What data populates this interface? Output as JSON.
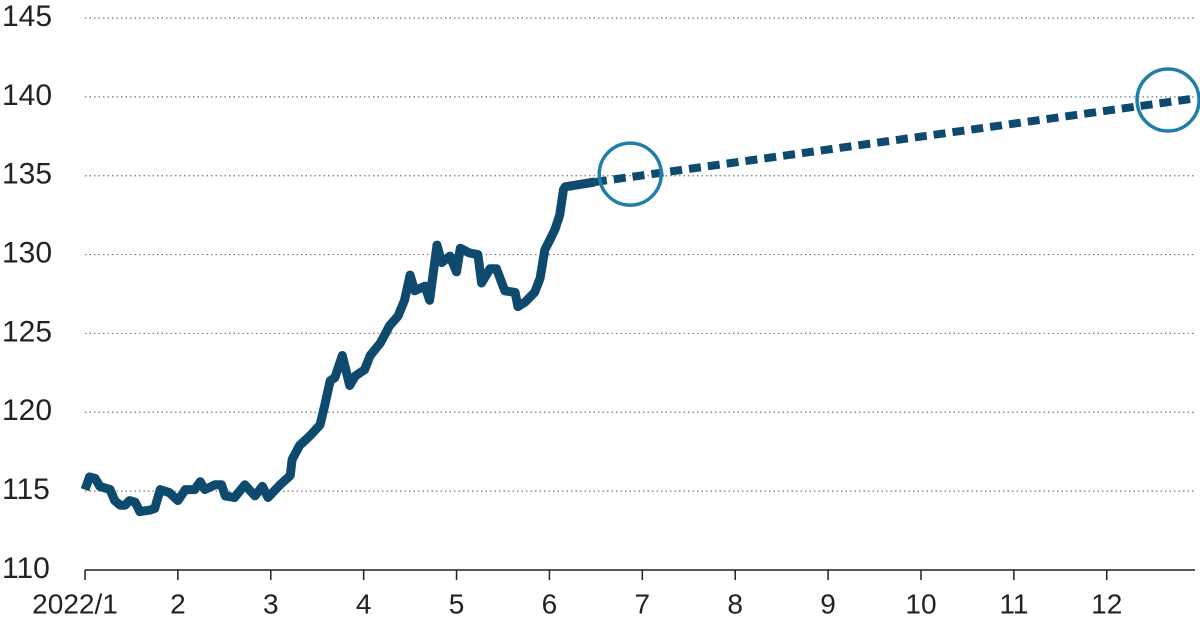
{
  "chart_data": {
    "type": "line",
    "xlim": [
      1,
      12.95
    ],
    "xticks": [
      {
        "value": 1,
        "label": "2022/1"
      },
      2,
      3,
      4,
      5,
      6,
      7,
      8,
      9,
      10,
      11,
      12
    ],
    "ylim": [
      110,
      145
    ],
    "yticks": [
      110,
      115,
      120,
      125,
      130,
      135,
      140,
      145
    ],
    "grid": true,
    "series": [
      {
        "color": "#0d4a6e",
        "style": "solid",
        "x": [
          1.0,
          1.05,
          1.11,
          1.16,
          1.27,
          1.32,
          1.38,
          1.43,
          1.48,
          1.54,
          1.59,
          1.7,
          1.75,
          1.81,
          1.91,
          2.0,
          2.08,
          2.18,
          2.24,
          2.29,
          2.4,
          2.47,
          2.51,
          2.61,
          2.72,
          2.83,
          2.91,
          2.97,
          3.1,
          3.21,
          3.23,
          3.31,
          3.42,
          3.53,
          3.58,
          3.64,
          3.69,
          3.77,
          3.85,
          3.91,
          4.01,
          4.07,
          4.18,
          4.28,
          4.37,
          4.44,
          4.5,
          4.55,
          4.66,
          4.71,
          4.79,
          4.84,
          4.93,
          5.0,
          5.04,
          5.14,
          5.23,
          5.27,
          5.36,
          5.43,
          5.52,
          5.63,
          5.66,
          5.74,
          5.84,
          5.9,
          5.95,
          6.01,
          6.06,
          6.11,
          6.15,
          6.17,
          6.49
        ],
        "values": [
          115.1,
          115.9,
          115.8,
          115.3,
          115.1,
          114.4,
          114.1,
          114.1,
          114.4,
          114.3,
          113.7,
          113.8,
          113.9,
          115.1,
          114.9,
          114.4,
          115.1,
          115.1,
          115.6,
          115.1,
          115.4,
          115.4,
          114.7,
          114.6,
          115.4,
          114.7,
          115.3,
          114.6,
          115.4,
          116.0,
          117.0,
          117.9,
          118.5,
          119.2,
          120.4,
          122.0,
          122.2,
          123.6,
          121.7,
          122.3,
          122.7,
          123.6,
          124.4,
          125.5,
          126.1,
          127.1,
          128.7,
          127.7,
          128.0,
          127.1,
          130.6,
          129.5,
          129.9,
          128.9,
          130.4,
          130.1,
          130.0,
          128.2,
          129.1,
          129.1,
          127.7,
          127.6,
          126.7,
          127.0,
          127.6,
          128.5,
          130.3,
          131.0,
          131.6,
          132.5,
          134.1,
          134.3,
          134.6
        ]
      },
      {
        "color": "#0d4a6e",
        "style": "dashed",
        "x": [
          6.49,
          12.95
        ],
        "values": [
          134.6,
          139.9
        ]
      }
    ],
    "highlights": {
      "color": "#1f7fa8",
      "x": [
        6.87,
        12.66
      ],
      "values": [
        135.1,
        139.8
      ]
    }
  }
}
